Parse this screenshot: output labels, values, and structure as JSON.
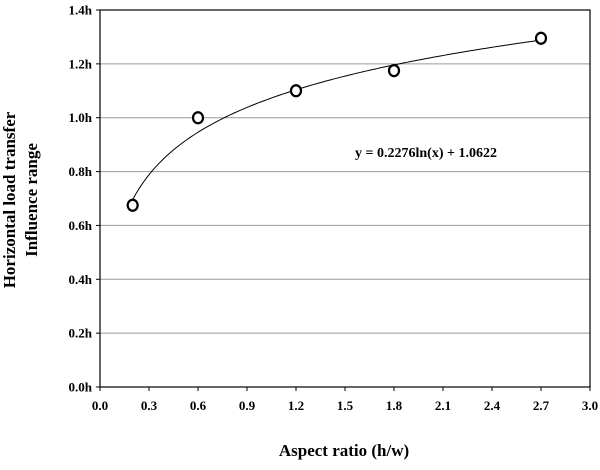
{
  "chart_data": {
    "type": "scatter",
    "xlabel": "Aspect ratio (h/w)",
    "ylabel_lines": [
      "Horizontal load transfer",
      "Influence range"
    ],
    "xlim": [
      0.0,
      3.0
    ],
    "ylim": [
      0.0,
      1.4
    ],
    "x_ticks": [
      "0.0",
      "0.3",
      "0.6",
      "0.9",
      "1.2",
      "1.5",
      "1.8",
      "2.1",
      "2.4",
      "2.7",
      "3.0"
    ],
    "y_ticks": [
      "0.0h",
      "0.2h",
      "0.4h",
      "0.6h",
      "0.8h",
      "1.0h",
      "1.2h",
      "1.4h"
    ],
    "grid": "horizontal",
    "series": [
      {
        "marker": "open-circle",
        "points": [
          {
            "x": 0.2,
            "y": 0.675
          },
          {
            "x": 0.6,
            "y": 1.0
          },
          {
            "x": 1.2,
            "y": 1.1
          },
          {
            "x": 1.8,
            "y": 1.175
          },
          {
            "x": 2.7,
            "y": 1.295
          }
        ]
      }
    ],
    "trendline": {
      "kind": "logarithmic",
      "a": 0.2276,
      "b": 1.0622,
      "x_range": [
        0.2,
        2.7
      ],
      "equation_label": "y = 0.2276ln(x) + 1.0622"
    }
  }
}
